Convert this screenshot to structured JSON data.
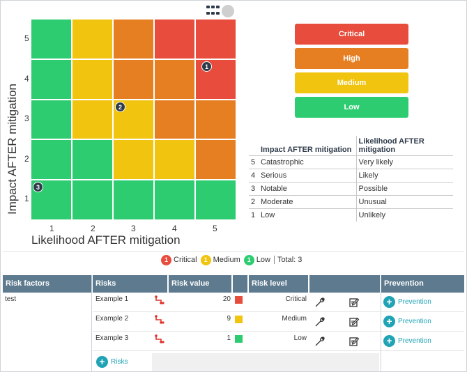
{
  "toolbar": {
    "grid_icon": "apps-grid-icon",
    "circle_icon": "avatar-circle-icon"
  },
  "matrix": {
    "y_ticks": [
      "5",
      "4",
      "3",
      "2",
      "1"
    ],
    "x_ticks": [
      "1",
      "2",
      "3",
      "4",
      "5"
    ],
    "y_label": "Impact AFTER mitigation",
    "x_label": "Likelihood AFTER mitigation",
    "rows": [
      [
        "green",
        "yellow",
        "orange",
        "red",
        "red"
      ],
      [
        "green",
        "yellow",
        "orange",
        "orange",
        "red"
      ],
      [
        "green",
        "yellow",
        "yellow",
        "orange",
        "orange"
      ],
      [
        "green",
        "green",
        "yellow",
        "yellow",
        "orange"
      ],
      [
        "green",
        "green",
        "green",
        "green",
        "green"
      ]
    ],
    "pins": [
      {
        "label": "1",
        "impact": 4,
        "likelihood": 5
      },
      {
        "label": "2",
        "impact": 3,
        "likelihood": 3
      },
      {
        "label": "3",
        "impact": 1,
        "likelihood": 1
      }
    ]
  },
  "levels": [
    {
      "label": "Critical",
      "color": "#e74c3c"
    },
    {
      "label": "High",
      "color": "#e67e22"
    },
    {
      "label": "Medium",
      "color": "#f1c40f"
    },
    {
      "label": "Low",
      "color": "#2ecc71"
    }
  ],
  "descriptions": {
    "impact_header": "Impact AFTER mitigation",
    "likelihood_header": "Likelihood AFTER mitigation",
    "rows": [
      {
        "num": "5",
        "impact": "Catastrophic",
        "likelihood": "Very likely"
      },
      {
        "num": "4",
        "impact": "Serious",
        "likelihood": "Likely"
      },
      {
        "num": "3",
        "impact": "Notable",
        "likelihood": "Possible"
      },
      {
        "num": "2",
        "impact": "Moderate",
        "likelihood": "Unusual"
      },
      {
        "num": "1",
        "impact": "Low",
        "likelihood": "Unlikely"
      }
    ]
  },
  "summary": {
    "items": [
      {
        "count": "1",
        "label": "Critical",
        "color": "#e74c3c"
      },
      {
        "count": "1",
        "label": "Medium",
        "color": "#f1c40f"
      },
      {
        "count": "1",
        "label": "Low",
        "color": "#2ecc71"
      }
    ],
    "total": "Total: 3"
  },
  "risk_table": {
    "headers": {
      "risk_factors": "Risk factors",
      "risks": "Risks",
      "risk_value": "Risk value",
      "risk_level": "Risk level",
      "prevention": "Prevention"
    },
    "factor": "test",
    "rows": [
      {
        "name": "Example 1",
        "value": "20",
        "color": "#e74c3c",
        "level": "Critical",
        "prevention": "Prevention"
      },
      {
        "name": "Example 2",
        "value": "9",
        "color": "#f1c40f",
        "level": "Medium",
        "prevention": "Prevention"
      },
      {
        "name": "Example 3",
        "value": "1",
        "color": "#2ecc71",
        "level": "Low",
        "prevention": "Prevention"
      }
    ],
    "add_risks": "Risks"
  }
}
